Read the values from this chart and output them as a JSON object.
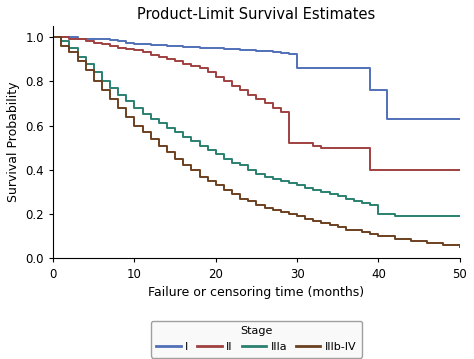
{
  "title": "Product-Limit Survival Estimates",
  "xlabel": "Failure or censoring time (months)",
  "ylabel": "Survival Probability",
  "xlim": [
    0,
    50
  ],
  "ylim": [
    0.0,
    1.05
  ],
  "xticks": [
    0,
    10,
    20,
    30,
    40,
    50
  ],
  "yticks": [
    0.0,
    0.2,
    0.4,
    0.6,
    0.8,
    1.0
  ],
  "legend_title": "Stage",
  "stages": [
    "I",
    "II",
    "IIIa",
    "IIIb-IV"
  ],
  "colors": {
    "I": "#5070b8",
    "II": "#a04040",
    "IIIa": "#2a8070",
    "IIIb-IV": "#6b4020"
  },
  "curves": {
    "I": {
      "x": [
        0,
        2,
        3,
        4,
        5,
        6,
        7,
        8,
        9,
        10,
        11,
        12,
        13,
        14,
        15,
        16,
        17,
        18,
        19,
        20,
        21,
        22,
        23,
        24,
        25,
        26,
        27,
        28,
        29,
        30,
        31,
        32,
        38,
        39,
        40,
        41,
        50
      ],
      "y": [
        1.0,
        1.0,
        0.99,
        0.99,
        0.99,
        0.99,
        0.985,
        0.98,
        0.975,
        0.97,
        0.968,
        0.965,
        0.963,
        0.96,
        0.958,
        0.956,
        0.954,
        0.952,
        0.95,
        0.948,
        0.946,
        0.944,
        0.942,
        0.94,
        0.938,
        0.935,
        0.93,
        0.928,
        0.925,
        0.86,
        0.86,
        0.86,
        0.86,
        0.76,
        0.76,
        0.63,
        0.63
      ]
    },
    "II": {
      "x": [
        0,
        1,
        2,
        3,
        4,
        5,
        6,
        7,
        8,
        9,
        10,
        11,
        12,
        13,
        14,
        15,
        16,
        17,
        18,
        19,
        20,
        21,
        22,
        23,
        24,
        25,
        26,
        27,
        28,
        29,
        30,
        31,
        32,
        33,
        38,
        39,
        40,
        50
      ],
      "y": [
        1.0,
        1.0,
        0.99,
        0.99,
        0.98,
        0.975,
        0.97,
        0.96,
        0.95,
        0.945,
        0.94,
        0.93,
        0.92,
        0.91,
        0.9,
        0.89,
        0.88,
        0.87,
        0.86,
        0.84,
        0.82,
        0.8,
        0.78,
        0.76,
        0.74,
        0.72,
        0.7,
        0.68,
        0.66,
        0.52,
        0.52,
        0.52,
        0.51,
        0.5,
        0.5,
        0.4,
        0.4,
        0.4
      ]
    },
    "IIIa": {
      "x": [
        0,
        1,
        2,
        3,
        4,
        5,
        6,
        7,
        8,
        9,
        10,
        11,
        12,
        13,
        14,
        15,
        16,
        17,
        18,
        19,
        20,
        21,
        22,
        23,
        24,
        25,
        26,
        27,
        28,
        29,
        30,
        31,
        32,
        33,
        34,
        35,
        36,
        37,
        38,
        39,
        40,
        41,
        42,
        50
      ],
      "y": [
        1.0,
        0.98,
        0.95,
        0.91,
        0.88,
        0.84,
        0.8,
        0.77,
        0.74,
        0.71,
        0.68,
        0.65,
        0.63,
        0.61,
        0.59,
        0.57,
        0.55,
        0.53,
        0.51,
        0.49,
        0.47,
        0.45,
        0.43,
        0.42,
        0.4,
        0.38,
        0.37,
        0.36,
        0.35,
        0.34,
        0.33,
        0.32,
        0.31,
        0.3,
        0.29,
        0.28,
        0.27,
        0.26,
        0.25,
        0.24,
        0.2,
        0.2,
        0.19,
        0.19
      ]
    },
    "IIIb-IV": {
      "x": [
        0,
        1,
        2,
        3,
        4,
        5,
        6,
        7,
        8,
        9,
        10,
        11,
        12,
        13,
        14,
        15,
        16,
        17,
        18,
        19,
        20,
        21,
        22,
        23,
        24,
        25,
        26,
        27,
        28,
        29,
        30,
        31,
        32,
        33,
        34,
        35,
        36,
        37,
        38,
        39,
        40,
        41,
        42,
        43,
        44,
        45,
        46,
        47,
        48,
        49,
        50
      ],
      "y": [
        1.0,
        0.96,
        0.93,
        0.89,
        0.85,
        0.8,
        0.76,
        0.72,
        0.68,
        0.64,
        0.6,
        0.57,
        0.54,
        0.51,
        0.48,
        0.45,
        0.42,
        0.4,
        0.37,
        0.35,
        0.33,
        0.31,
        0.29,
        0.27,
        0.26,
        0.24,
        0.23,
        0.22,
        0.21,
        0.2,
        0.19,
        0.18,
        0.17,
        0.16,
        0.15,
        0.14,
        0.13,
        0.13,
        0.12,
        0.11,
        0.1,
        0.1,
        0.09,
        0.09,
        0.08,
        0.08,
        0.07,
        0.07,
        0.06,
        0.06,
        0.05
      ]
    }
  },
  "background_color": "#ffffff",
  "plot_bg_color": "#ffffff",
  "linewidth": 1.4
}
